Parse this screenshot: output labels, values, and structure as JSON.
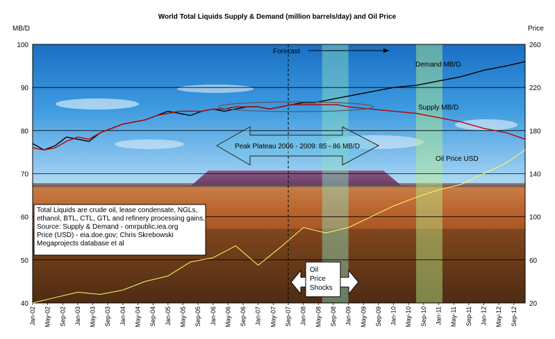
{
  "chart_data": {
    "type": "line",
    "title": "World Total Liquids Supply & Demand (million barrels/day) and Oil Price",
    "ylabel_left": "MB/D",
    "ylabel_right": "Price",
    "ylim_left": [
      40,
      100
    ],
    "yticks_left": [
      40,
      50,
      60,
      70,
      80,
      90,
      100
    ],
    "ylim_right": [
      20,
      260
    ],
    "yticks_right": [
      20,
      60,
      100,
      140,
      180,
      220,
      260
    ],
    "grid": true,
    "x_range": [
      "Jan-02",
      "Dec-12"
    ],
    "x_ticks": [
      "Jan-02",
      "May-02",
      "Sep-02",
      "Jan-03",
      "May-03",
      "Sep-03",
      "Jan-04",
      "May-04",
      "Sep-04",
      "Jan-05",
      "May-05",
      "Sep-05",
      "Jan-06",
      "May-06",
      "Sep-06",
      "Jan-07",
      "May-07",
      "Sep-07",
      "Jan-08",
      "May-08",
      "Sep-08",
      "Jan-09",
      "May-09",
      "Sep-09",
      "Jan-10",
      "May-10",
      "Sep-10",
      "Jan-11",
      "May-11",
      "Sep-11",
      "Jan-12",
      "May-12",
      "Sep-12"
    ],
    "series": [
      {
        "name": "Demand MB/D",
        "color": "#000000",
        "axis": "left",
        "points": [
          [
            "Jan-02",
            77.0
          ],
          [
            "Apr-02",
            75.5
          ],
          [
            "Jul-02",
            76.5
          ],
          [
            "Oct-02",
            78.5
          ],
          [
            "Jan-03",
            78.0
          ],
          [
            "Apr-03",
            77.5
          ],
          [
            "Jul-03",
            79.5
          ],
          [
            "Oct-03",
            80.5
          ],
          [
            "Jan-04",
            81.5
          ],
          [
            "Apr-04",
            82.0
          ],
          [
            "Jul-04",
            82.5
          ],
          [
            "Oct-04",
            83.5
          ],
          [
            "Jan-05",
            84.5
          ],
          [
            "Apr-05",
            84.0
          ],
          [
            "Jul-05",
            83.5
          ],
          [
            "Oct-05",
            84.5
          ],
          [
            "Jan-06",
            85.0
          ],
          [
            "Apr-06",
            84.5
          ],
          [
            "Jul-06",
            85.0
          ],
          [
            "Oct-06",
            85.5
          ],
          [
            "Jan-07",
            85.5
          ],
          [
            "Apr-07",
            85.0
          ],
          [
            "Jul-07",
            85.5
          ],
          [
            "Oct-07",
            86.0
          ],
          [
            "Jan-08",
            86.5
          ],
          [
            "Apr-08",
            86.5
          ],
          [
            "Jul-08",
            87.0
          ],
          [
            "Oct-08",
            87.5
          ],
          [
            "Jan-09",
            88.0
          ],
          [
            "Apr-09",
            88.5
          ],
          [
            "Jul-09",
            89.0
          ],
          [
            "Oct-09",
            89.5
          ],
          [
            "Jan-10",
            90.0
          ],
          [
            "Jul-10",
            90.5
          ],
          [
            "Jan-11",
            91.5
          ],
          [
            "Jul-11",
            92.5
          ],
          [
            "Jan-12",
            94.0
          ],
          [
            "Jul-12",
            95.0
          ],
          [
            "Dec-12",
            96.0
          ]
        ]
      },
      {
        "name": "Supply MB/D",
        "color": "#c00000",
        "axis": "left",
        "points": [
          [
            "Jan-02",
            76.0
          ],
          [
            "Apr-02",
            75.5
          ],
          [
            "Jul-02",
            76.0
          ],
          [
            "Oct-02",
            77.5
          ],
          [
            "Jan-03",
            78.5
          ],
          [
            "Apr-03",
            78.0
          ],
          [
            "Jul-03",
            79.5
          ],
          [
            "Oct-03",
            80.5
          ],
          [
            "Jan-04",
            81.5
          ],
          [
            "Apr-04",
            82.0
          ],
          [
            "Jul-04",
            82.5
          ],
          [
            "Oct-04",
            83.5
          ],
          [
            "Jan-05",
            84.0
          ],
          [
            "Apr-05",
            84.5
          ],
          [
            "Jul-05",
            84.5
          ],
          [
            "Oct-05",
            84.5
          ],
          [
            "Jan-06",
            85.0
          ],
          [
            "Apr-06",
            85.0
          ],
          [
            "Jul-06",
            85.5
          ],
          [
            "Oct-06",
            85.5
          ],
          [
            "Jan-07",
            85.5
          ],
          [
            "Apr-07",
            85.0
          ],
          [
            "Jul-07",
            85.5
          ],
          [
            "Oct-07",
            86.0
          ],
          [
            "Jan-08",
            86.0
          ],
          [
            "Apr-08",
            86.0
          ],
          [
            "Jul-08",
            86.0
          ],
          [
            "Oct-08",
            86.0
          ],
          [
            "Jan-09",
            85.5
          ],
          [
            "Jul-09",
            85.0
          ],
          [
            "Jan-10",
            84.5
          ],
          [
            "Jul-10",
            84.0
          ],
          [
            "Jan-11",
            83.0
          ],
          [
            "Jul-11",
            82.0
          ],
          [
            "Jan-12",
            80.5
          ],
          [
            "Jul-12",
            79.5
          ],
          [
            "Dec-12",
            78.0
          ]
        ]
      },
      {
        "name": "Oil Price USD",
        "color": "#ffff66",
        "axis": "right",
        "points": [
          [
            "Jan-02",
            20
          ],
          [
            "Jul-02",
            25
          ],
          [
            "Jan-03",
            30
          ],
          [
            "Jul-03",
            28
          ],
          [
            "Jan-04",
            32
          ],
          [
            "Jul-04",
            40
          ],
          [
            "Jan-05",
            45
          ],
          [
            "Jul-05",
            58
          ],
          [
            "Jan-06",
            62
          ],
          [
            "Jul-06",
            73
          ],
          [
            "Jan-07",
            55
          ],
          [
            "Jul-07",
            72
          ],
          [
            "Jan-08",
            90
          ],
          [
            "Jul-08",
            85
          ],
          [
            "Jan-09",
            90
          ],
          [
            "Jul-09",
            100
          ],
          [
            "Jan-10",
            110
          ],
          [
            "Jul-10",
            118
          ],
          [
            "Jan-11",
            125
          ],
          [
            "Jul-11",
            130
          ],
          [
            "Jan-12",
            140
          ],
          [
            "Jul-12",
            150
          ],
          [
            "Dec-12",
            162
          ]
        ]
      }
    ],
    "annotations": {
      "forecast": "Forecast",
      "forecast_start": "Sep-07",
      "peak_plateau": "Peak Plateau 2006 - 2009: 85 - 86 MB/D",
      "oil_price_shocks": [
        "Oil",
        "Price",
        "Shocks"
      ],
      "shock_bands": [
        [
          "Jun-08",
          "Jan-09"
        ],
        [
          "Jul-10",
          "Feb-11"
        ]
      ],
      "note_lines": [
        "Total Liquids are crude oil, lease condensate, NGLs,",
        "ethanol, BTL, CTL, GTL and refinery processing gains.",
        "Source: Supply & Demand - omrpublic.iea.org",
        "Price (USD) - eia.doe.gov; Chris Skrebowski",
        "Megaprojects database et al"
      ]
    }
  }
}
